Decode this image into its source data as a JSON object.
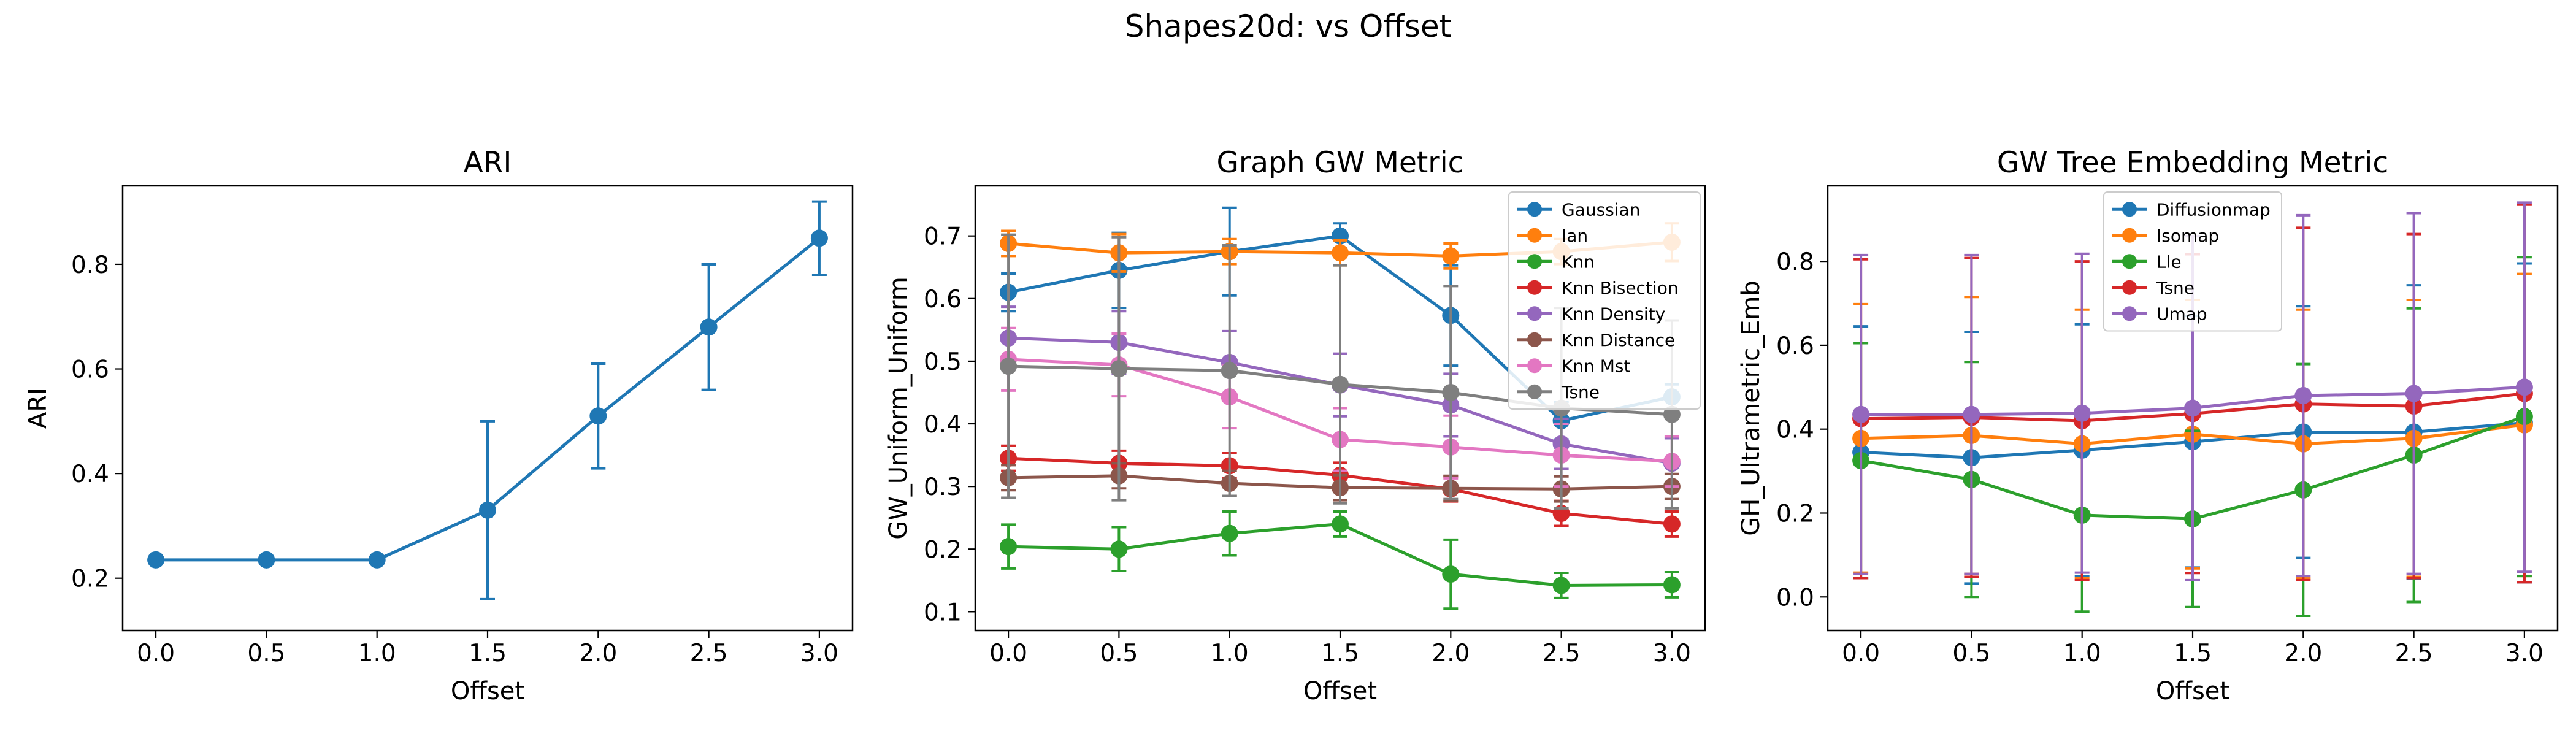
{
  "suptitle": "Shapes20d: vs Offset",
  "chart_data": [
    {
      "type": "line",
      "title": "ARI",
      "xlabel": "Offset",
      "ylabel": "ARI",
      "x": [
        0.0,
        0.5,
        1.0,
        1.5,
        2.0,
        2.5,
        3.0
      ],
      "xticks": [
        "0.0",
        "0.5",
        "1.0",
        "1.5",
        "2.0",
        "2.5",
        "3.0"
      ],
      "yticks": [
        "0.2",
        "0.4",
        "0.6",
        "0.8"
      ],
      "xlim": [
        -0.15,
        3.15
      ],
      "ylim": [
        0.1,
        0.95
      ],
      "series": [
        {
          "color": "#1f77b4",
          "values": [
            0.235,
            0.235,
            0.235,
            0.33,
            0.51,
            0.68,
            0.85
          ],
          "err": [
            0.0,
            0.0,
            0.0,
            0.17,
            0.1,
            0.12,
            0.07
          ]
        }
      ]
    },
    {
      "type": "line",
      "title": "Graph GW Metric",
      "xlabel": "Offset",
      "ylabel": "GW_Uniform_Uniform",
      "x": [
        0.0,
        0.5,
        1.0,
        1.5,
        2.0,
        2.5,
        3.0
      ],
      "xticks": [
        "0.0",
        "0.5",
        "1.0",
        "1.5",
        "2.0",
        "2.5",
        "3.0"
      ],
      "yticks": [
        "0.1",
        "0.2",
        "0.3",
        "0.4",
        "0.5",
        "0.6",
        "0.7"
      ],
      "xlim": [
        -0.15,
        3.15
      ],
      "ylim": [
        0.07,
        0.78
      ],
      "legend_position": "top-right",
      "series": [
        {
          "name": "Gaussian",
          "color": "#1f77b4",
          "values": [
            0.61,
            0.645,
            0.675,
            0.7,
            0.573,
            0.405,
            0.443
          ],
          "err": [
            0.03,
            0.06,
            0.07,
            0.02,
            0.08,
            0.03,
            0.02
          ]
        },
        {
          "name": "Ian",
          "color": "#ff7f0e",
          "values": [
            0.688,
            0.673,
            0.675,
            0.673,
            0.668,
            0.675,
            0.69
          ],
          "err": [
            0.02,
            0.03,
            0.02,
            0.02,
            0.02,
            0.02,
            0.03
          ]
        },
        {
          "name": "Knn",
          "color": "#2ca02c",
          "values": [
            0.204,
            0.2,
            0.225,
            0.24,
            0.16,
            0.142,
            0.143
          ],
          "err": [
            0.035,
            0.035,
            0.035,
            0.02,
            0.055,
            0.02,
            0.02
          ]
        },
        {
          "name": "Knn Bisection",
          "color": "#d62728",
          "values": [
            0.345,
            0.337,
            0.333,
            0.318,
            0.296,
            0.257,
            0.24
          ],
          "err": [
            0.02,
            0.02,
            0.02,
            0.02,
            0.02,
            0.02,
            0.02
          ]
        },
        {
          "name": "Knn Density",
          "color": "#9467bd",
          "values": [
            0.537,
            0.53,
            0.498,
            0.462,
            0.43,
            0.368,
            0.337
          ],
          "err": [
            0.05,
            0.05,
            0.05,
            0.05,
            0.05,
            0.04,
            0.04
          ]
        },
        {
          "name": "Knn Distance",
          "color": "#8c564b",
          "values": [
            0.314,
            0.317,
            0.305,
            0.298,
            0.297,
            0.296,
            0.3
          ],
          "err": [
            0.02,
            0.02,
            0.02,
            0.02,
            0.02,
            0.02,
            0.02
          ]
        },
        {
          "name": "Knn Mst",
          "color": "#e377c2",
          "values": [
            0.503,
            0.494,
            0.443,
            0.375,
            0.363,
            0.35,
            0.34
          ],
          "err": [
            0.05,
            0.05,
            0.05,
            0.05,
            0.05,
            0.05,
            0.04
          ]
        },
        {
          "name": "Tsne",
          "color": "#7f7f7f",
          "values": [
            0.492,
            0.488,
            0.485,
            0.463,
            0.45,
            0.425,
            0.415
          ],
          "err": [
            0.21,
            0.21,
            0.2,
            0.19,
            0.17,
            0.16,
            0.15
          ]
        }
      ]
    },
    {
      "type": "line",
      "title": "GW Tree Embedding Metric",
      "xlabel": "Offset",
      "ylabel": "GH_Ultrametric_Emb",
      "x": [
        0.0,
        0.5,
        1.0,
        1.5,
        2.0,
        2.5,
        3.0
      ],
      "xticks": [
        "0.0",
        "0.5",
        "1.0",
        "1.5",
        "2.0",
        "2.5",
        "3.0"
      ],
      "yticks": [
        "0.0",
        "0.2",
        "0.4",
        "0.6",
        "0.8"
      ],
      "xlim": [
        -0.15,
        3.15
      ],
      "ylim": [
        -0.08,
        0.98
      ],
      "legend_position": "top-center",
      "series": [
        {
          "name": "Diffusionmap",
          "color": "#1f77b4",
          "values": [
            0.345,
            0.332,
            0.35,
            0.37,
            0.393,
            0.393,
            0.415
          ],
          "err": [
            0.3,
            0.3,
            0.3,
            0.3,
            0.3,
            0.35,
            0.38
          ]
        },
        {
          "name": "Isomap",
          "color": "#ff7f0e",
          "values": [
            0.378,
            0.385,
            0.365,
            0.388,
            0.365,
            0.378,
            0.41
          ],
          "err": [
            0.32,
            0.33,
            0.32,
            0.32,
            0.32,
            0.33,
            0.36
          ]
        },
        {
          "name": "Lle",
          "color": "#2ca02c",
          "values": [
            0.325,
            0.28,
            0.195,
            0.186,
            0.255,
            0.338,
            0.43
          ],
          "err": [
            0.28,
            0.28,
            0.23,
            0.21,
            0.3,
            0.35,
            0.38
          ]
        },
        {
          "name": "Tsne",
          "color": "#d62728",
          "values": [
            0.425,
            0.428,
            0.42,
            0.437,
            0.46,
            0.455,
            0.485
          ],
          "err": [
            0.38,
            0.38,
            0.38,
            0.38,
            0.42,
            0.41,
            0.45
          ]
        },
        {
          "name": "Umap",
          "color": "#9467bd",
          "values": [
            0.435,
            0.435,
            0.438,
            0.45,
            0.48,
            0.485,
            0.5
          ],
          "err": [
            0.38,
            0.38,
            0.38,
            0.41,
            0.43,
            0.43,
            0.44
          ]
        }
      ]
    }
  ]
}
